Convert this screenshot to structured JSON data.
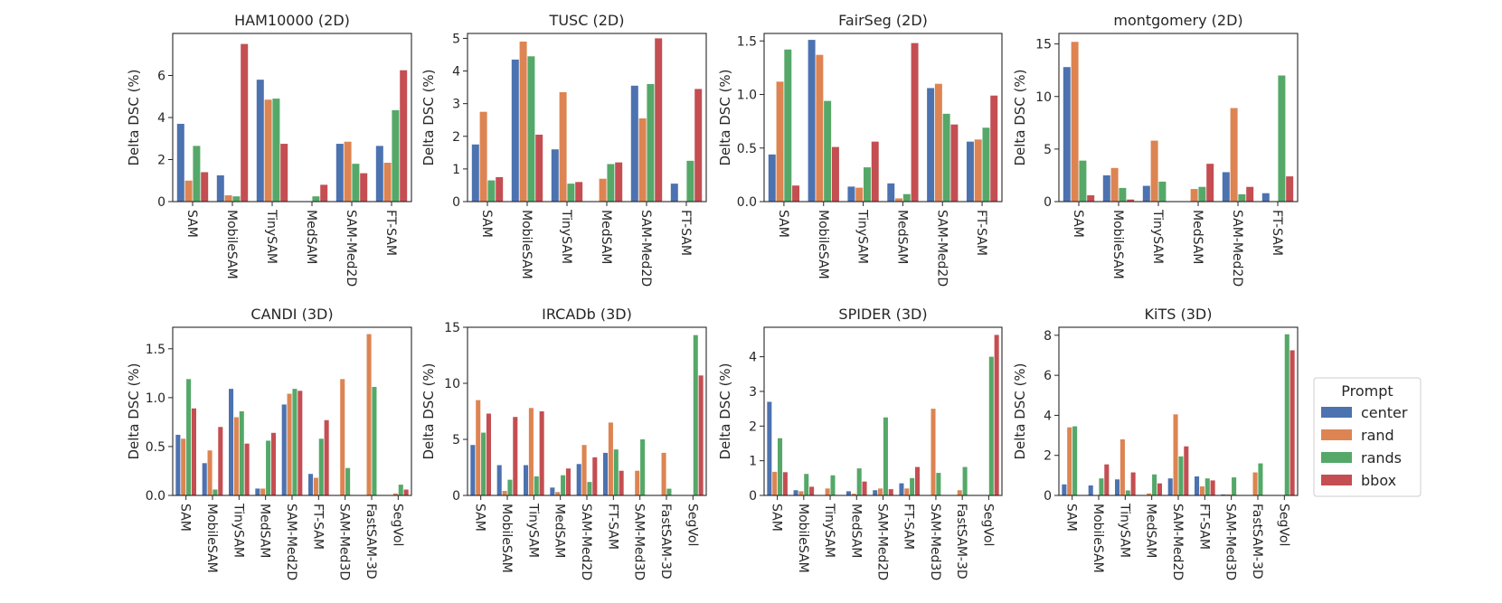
{
  "legend": {
    "title": "Prompt",
    "entries": [
      {
        "name": "center",
        "color": "#4c72b0"
      },
      {
        "name": "rand",
        "color": "#dd8452"
      },
      {
        "name": "rands",
        "color": "#55a868"
      },
      {
        "name": "bbox",
        "color": "#c44e52"
      }
    ]
  },
  "chart_data": [
    {
      "type": "bar",
      "title": "HAM10000 (2D)",
      "ylabel": "Delta DSC (%)",
      "ylim": [
        0,
        8
      ],
      "yticks": [
        0,
        2,
        4,
        6
      ],
      "categories": [
        "SAM",
        "MobileSAM",
        "TinySAM",
        "MedSAM",
        "SAM-Med2D",
        "FT-SAM"
      ],
      "series": [
        {
          "name": "center",
          "values": [
            3.7,
            1.25,
            5.8,
            0.0,
            2.75,
            2.65
          ]
        },
        {
          "name": "rand",
          "values": [
            1.0,
            0.3,
            4.85,
            0.0,
            2.85,
            1.85
          ]
        },
        {
          "name": "rands",
          "values": [
            2.65,
            0.25,
            4.9,
            0.25,
            1.8,
            4.35
          ]
        },
        {
          "name": "bbox",
          "values": [
            1.4,
            7.5,
            2.75,
            0.8,
            1.35,
            6.25
          ]
        }
      ]
    },
    {
      "type": "bar",
      "title": "TUSC (2D)",
      "ylabel": "Delta DSC (%)",
      "ylim": [
        0,
        5.15
      ],
      "yticks": [
        0,
        1,
        2,
        3,
        4,
        5
      ],
      "categories": [
        "SAM",
        "MobileSAM",
        "TinySAM",
        "MedSAM",
        "SAM-Med2D",
        "FT-SAM"
      ],
      "series": [
        {
          "name": "center",
          "values": [
            1.75,
            4.35,
            1.6,
            0.0,
            3.55,
            0.55
          ]
        },
        {
          "name": "rand",
          "values": [
            2.75,
            4.9,
            3.35,
            0.7,
            2.55,
            0.0
          ]
        },
        {
          "name": "rands",
          "values": [
            0.65,
            4.45,
            0.55,
            1.15,
            3.6,
            1.25
          ]
        },
        {
          "name": "bbox",
          "values": [
            0.75,
            2.05,
            0.6,
            1.2,
            5.0,
            3.45
          ]
        }
      ]
    },
    {
      "type": "bar",
      "title": "FairSeg (2D)",
      "ylabel": "Delta DSC (%)",
      "ylim": [
        0,
        1.57
      ],
      "yticks": [
        0.0,
        0.5,
        1.0,
        1.5
      ],
      "categories": [
        "SAM",
        "MobileSAM",
        "TinySAM",
        "MedSAM",
        "SAM-Med2D",
        "FT-SAM"
      ],
      "series": [
        {
          "name": "center",
          "values": [
            0.44,
            1.51,
            0.14,
            0.17,
            1.06,
            0.56
          ]
        },
        {
          "name": "rand",
          "values": [
            1.12,
            1.37,
            0.13,
            0.03,
            1.1,
            0.58
          ]
        },
        {
          "name": "rands",
          "values": [
            1.42,
            0.94,
            0.32,
            0.07,
            0.82,
            0.69
          ]
        },
        {
          "name": "bbox",
          "values": [
            0.15,
            0.51,
            0.56,
            1.48,
            0.72,
            0.99
          ]
        }
      ]
    },
    {
      "type": "bar",
      "title": "montgomery (2D)",
      "ylabel": "Delta DSC (%)",
      "ylim": [
        0,
        16
      ],
      "yticks": [
        0,
        5,
        10,
        15
      ],
      "categories": [
        "SAM",
        "MobileSAM",
        "TinySAM",
        "MedSAM",
        "SAM-Med2D",
        "FT-SAM"
      ],
      "series": [
        {
          "name": "center",
          "values": [
            12.8,
            2.5,
            1.5,
            0.0,
            2.8,
            0.8
          ]
        },
        {
          "name": "rand",
          "values": [
            15.2,
            3.2,
            5.8,
            1.2,
            8.9,
            0.0
          ]
        },
        {
          "name": "rands",
          "values": [
            3.9,
            1.3,
            1.9,
            1.4,
            0.7,
            12.0
          ]
        },
        {
          "name": "bbox",
          "values": [
            0.6,
            0.2,
            0.0,
            3.6,
            1.4,
            2.4
          ]
        }
      ]
    },
    {
      "type": "bar",
      "title": "CANDI (3D)",
      "ylabel": "Delta DSC (%)",
      "ylim": [
        0,
        1.72
      ],
      "yticks": [
        0.0,
        0.5,
        1.0,
        1.5
      ],
      "categories": [
        "SAM",
        "MobileSAM",
        "TinySAM",
        "MedSAM",
        "SAM-Med2D",
        "FT-SAM",
        "SAM-Med3D",
        "FastSAM-3D",
        "SegVol"
      ],
      "series": [
        {
          "name": "center",
          "values": [
            0.62,
            0.33,
            1.09,
            0.07,
            0.93,
            0.22,
            0.0,
            0.0,
            0.0
          ]
        },
        {
          "name": "rand",
          "values": [
            0.58,
            0.46,
            0.8,
            0.07,
            1.04,
            0.18,
            1.19,
            1.65,
            0.02
          ]
        },
        {
          "name": "rands",
          "values": [
            1.19,
            0.06,
            0.86,
            0.56,
            1.09,
            0.58,
            0.28,
            1.11,
            0.11
          ]
        },
        {
          "name": "bbox",
          "values": [
            0.89,
            0.7,
            0.53,
            0.64,
            1.07,
            0.77,
            0.0,
            0.0,
            0.06
          ]
        }
      ]
    },
    {
      "type": "bar",
      "title": "IRCADb (3D)",
      "ylabel": "Delta DSC (%)",
      "ylim": [
        0,
        15
      ],
      "yticks": [
        0,
        5,
        10,
        15
      ],
      "categories": [
        "SAM",
        "MobileSAM",
        "TinySAM",
        "MedSAM",
        "SAM-Med2D",
        "FT-SAM",
        "SAM-Med3D",
        "FastSAM-3D",
        "SegVol"
      ],
      "series": [
        {
          "name": "center",
          "values": [
            4.5,
            2.7,
            2.7,
            0.7,
            2.8,
            3.8,
            0.0,
            0.0,
            0.0
          ]
        },
        {
          "name": "rand",
          "values": [
            8.5,
            0.4,
            7.8,
            0.3,
            4.5,
            6.5,
            2.2,
            3.8,
            0.0
          ]
        },
        {
          "name": "rands",
          "values": [
            5.6,
            1.4,
            1.7,
            1.8,
            1.2,
            4.1,
            5.0,
            0.6,
            14.3
          ]
        },
        {
          "name": "bbox",
          "values": [
            7.3,
            7.0,
            7.5,
            2.4,
            3.4,
            2.2,
            0.0,
            0.0,
            10.7
          ]
        }
      ]
    },
    {
      "type": "bar",
      "title": "SPIDER (3D)",
      "ylabel": "Delta DSC (%)",
      "ylim": [
        0,
        4.85
      ],
      "yticks": [
        0,
        1,
        2,
        3,
        4
      ],
      "categories": [
        "SAM",
        "MobileSAM",
        "TinySAM",
        "MedSAM",
        "SAM-Med2D",
        "FT-SAM",
        "SAM-Med3D",
        "FastSAM-3D",
        "SegVol"
      ],
      "series": [
        {
          "name": "center",
          "values": [
            2.7,
            0.15,
            0.0,
            0.12,
            0.15,
            0.35,
            0.0,
            0.0,
            0.0
          ]
        },
        {
          "name": "rand",
          "values": [
            0.68,
            0.12,
            0.2,
            0.05,
            0.2,
            0.2,
            2.5,
            0.15,
            0.0
          ]
        },
        {
          "name": "rands",
          "values": [
            1.65,
            0.62,
            0.58,
            0.78,
            2.25,
            0.5,
            0.65,
            0.82,
            4.0
          ]
        },
        {
          "name": "bbox",
          "values": [
            0.67,
            0.25,
            0.0,
            0.4,
            0.18,
            0.82,
            0.0,
            0.0,
            4.63
          ]
        }
      ]
    },
    {
      "type": "bar",
      "title": "KiTS (3D)",
      "ylabel": "Delta DSC (%)",
      "ylim": [
        0,
        8.4
      ],
      "yticks": [
        0,
        2,
        4,
        6,
        8
      ],
      "categories": [
        "SAM",
        "MobileSAM",
        "TinySAM",
        "MedSAM",
        "SAM-Med2D",
        "FT-SAM",
        "SAM-Med3D",
        "FastSAM-3D",
        "SegVol"
      ],
      "series": [
        {
          "name": "center",
          "values": [
            0.55,
            0.5,
            0.8,
            0.0,
            0.85,
            0.95,
            0.05,
            0.0,
            0.0
          ]
        },
        {
          "name": "rand",
          "values": [
            3.4,
            0.0,
            2.8,
            0.1,
            4.05,
            0.45,
            0.05,
            1.15,
            0.0
          ]
        },
        {
          "name": "rands",
          "values": [
            3.45,
            0.85,
            0.25,
            1.05,
            1.95,
            0.85,
            0.9,
            1.6,
            8.05
          ]
        },
        {
          "name": "bbox",
          "values": [
            0.0,
            1.55,
            1.15,
            0.6,
            2.45,
            0.75,
            0.0,
            0.0,
            7.25
          ]
        }
      ]
    }
  ]
}
